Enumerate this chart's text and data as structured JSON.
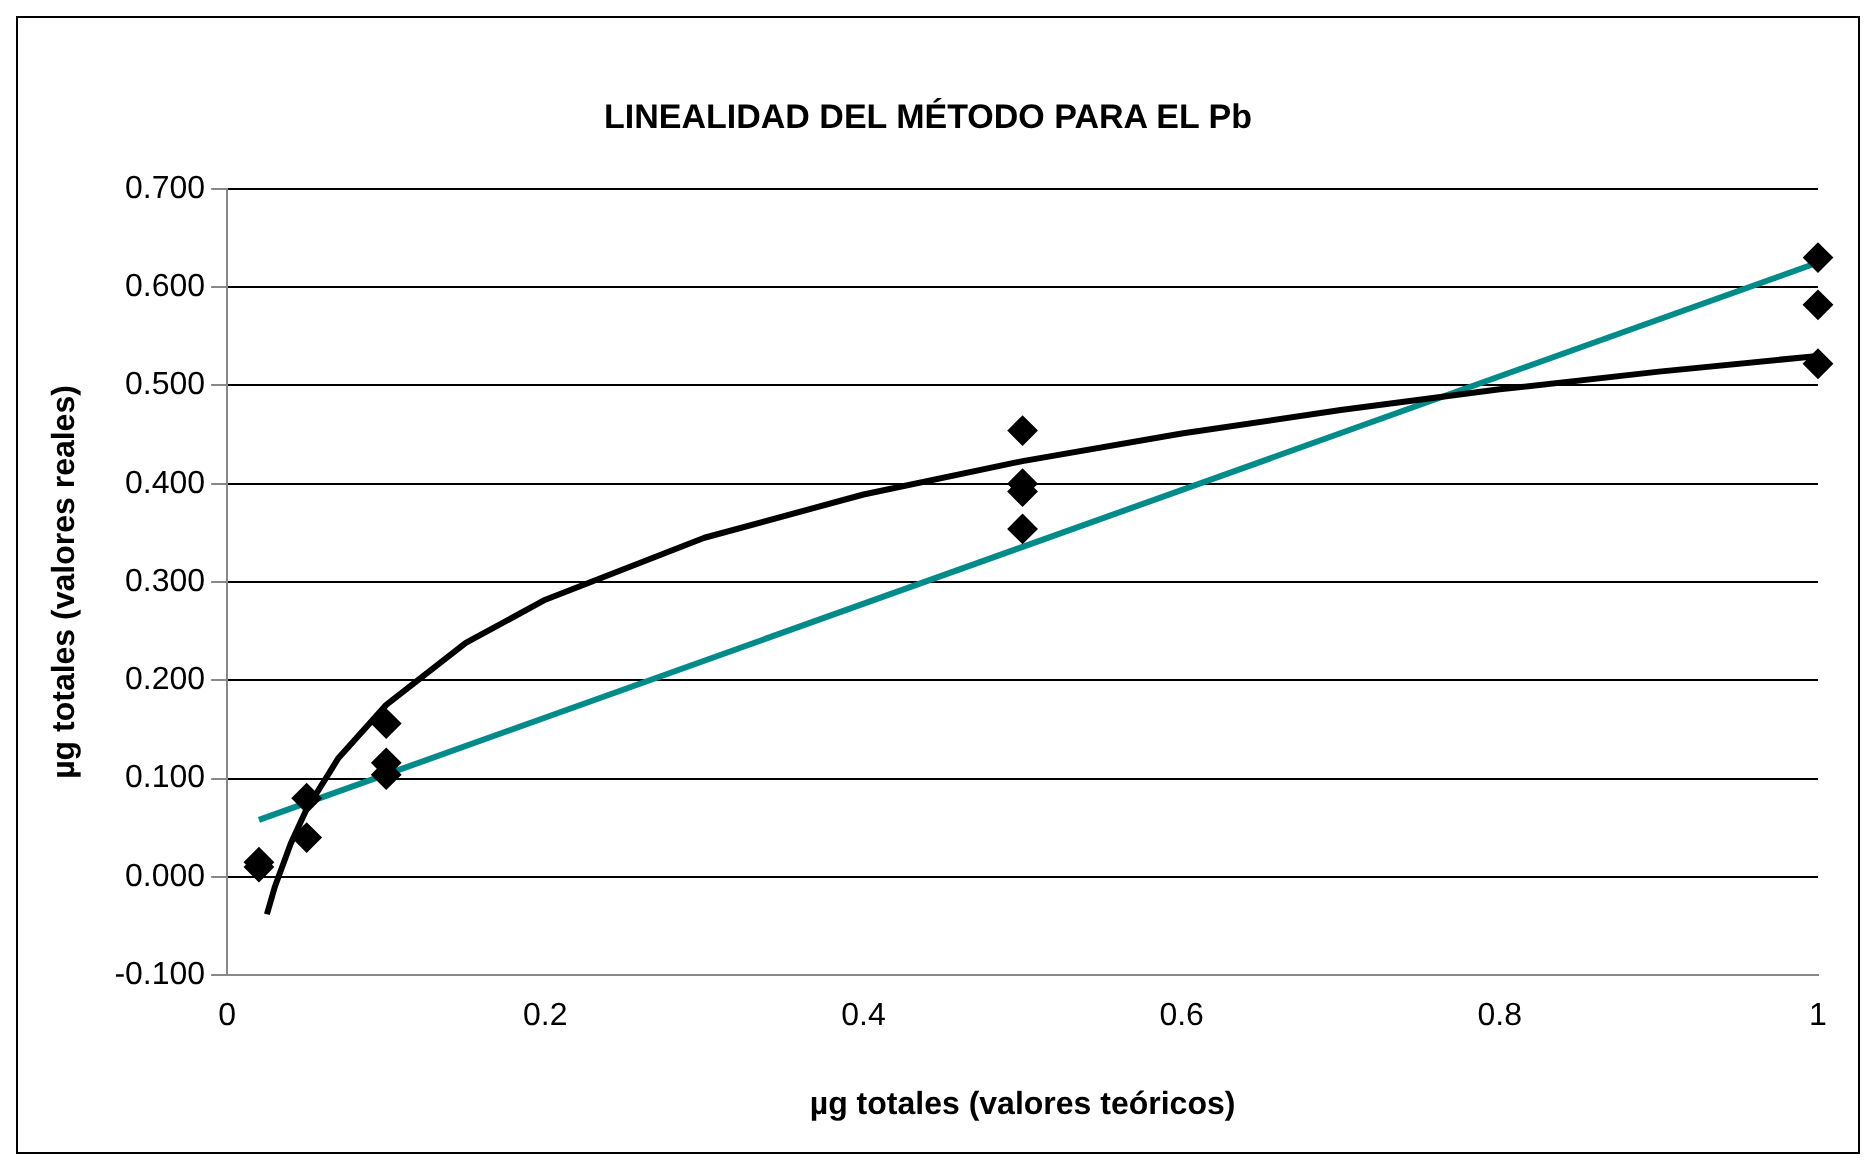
{
  "chart_data": {
    "type": "scatter",
    "title": "LINEALIDAD DEL MÉTODO PARA EL Pb",
    "xlabel": "µg totales (valores teóricos)",
    "ylabel": "µg totales (valores reales)",
    "series": [
      {
        "type": "scatter",
        "color": "#000000",
        "marker": "diamond",
        "x": [
          0.02,
          0.02,
          0.05,
          0.05,
          0.1,
          0.1,
          0.1,
          0.5,
          0.5,
          0.5,
          0.5,
          1,
          1,
          1
        ],
        "values": [
          0.015,
          0.01,
          0.08,
          0.04,
          0.156,
          0.116,
          0.104,
          0.454,
          0.4,
          0.392,
          0.354,
          0.63,
          0.582,
          0.522
        ]
      },
      {
        "type": "line",
        "color": "#000000",
        "marker": "none",
        "x": [
          0.025,
          0.03,
          0.04,
          0.05,
          0.07,
          0.1,
          0.15,
          0.2,
          0.3,
          0.4,
          0.5,
          0.6,
          0.7,
          0.8,
          0.9,
          1
        ],
        "values": [
          -0.038,
          -0.01,
          0.034,
          0.069,
          0.121,
          0.175,
          0.238,
          0.282,
          0.345,
          0.389,
          0.423,
          0.451,
          0.475,
          0.496,
          0.514,
          0.53
        ]
      },
      {
        "type": "line",
        "color": "#008b8b",
        "marker": "none",
        "x": [
          0.02,
          1
        ],
        "values": [
          0.058,
          0.625
        ]
      }
    ],
    "xlim": [
      0,
      1
    ],
    "xticks": [
      0,
      0.2,
      0.4,
      0.6,
      0.8,
      1
    ],
    "ylim": [
      -0.1,
      0.7
    ],
    "yticks": [
      {
        "value": -0.1,
        "label": "-0.100"
      },
      {
        "value": 0,
        "label": "0.000"
      },
      {
        "value": 0.1,
        "label": "0.100"
      },
      {
        "value": 0.2,
        "label": "0.200"
      },
      {
        "value": 0.3,
        "label": "0.300"
      },
      {
        "value": 0.4,
        "label": "0.400"
      },
      {
        "value": 0.5,
        "label": "0.500"
      },
      {
        "value": 0.6,
        "label": "0.600"
      },
      {
        "value": 0.7,
        "label": "0.700"
      }
    ],
    "grid": "y",
    "legend": false
  }
}
